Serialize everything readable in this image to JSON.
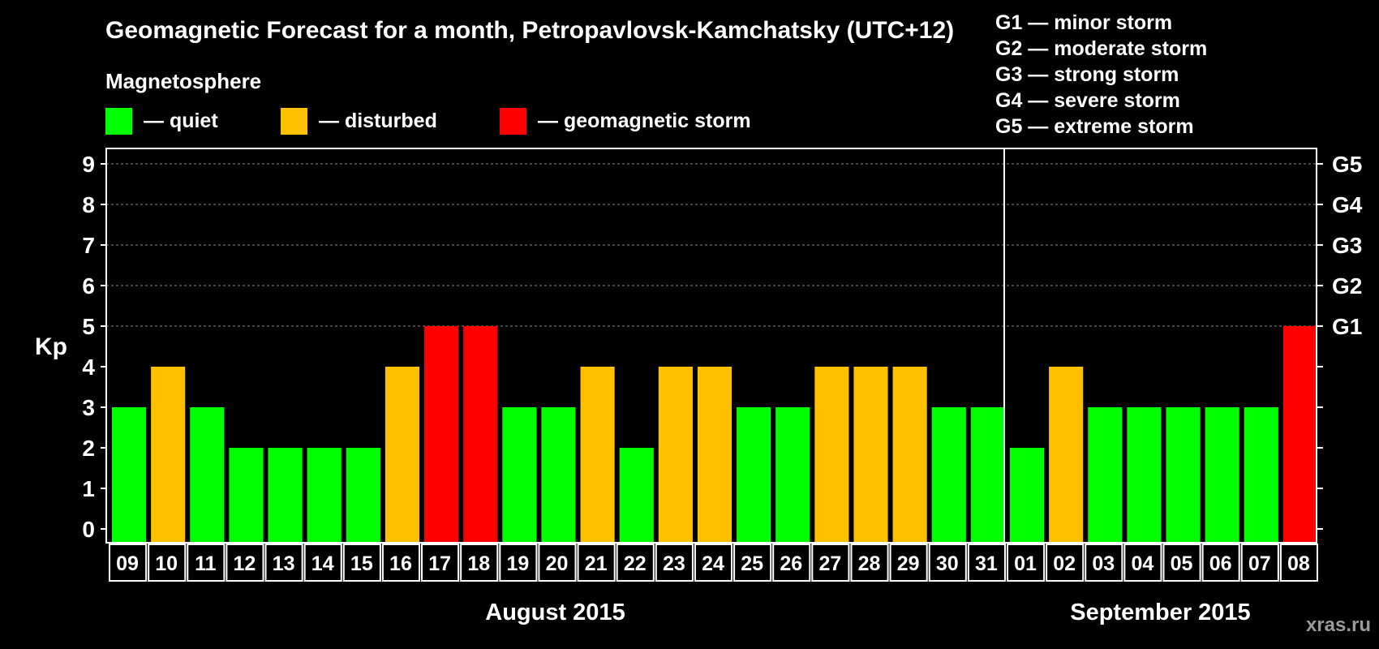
{
  "title": "Geomagnetic Forecast for a month, Petropavlovsk-Kamchatsky (UTC+12)",
  "legend": {
    "title": "Magnetosphere",
    "items": [
      {
        "label": "— quiet",
        "color": "#00ff00"
      },
      {
        "label": "— disturbed",
        "color": "#ffc000"
      },
      {
        "label": "— geomagnetic storm",
        "color": "#ff0000"
      }
    ]
  },
  "g_scale": [
    "G1 — minor storm",
    "G2 — moderate storm",
    "G3 — strong storm",
    "G4 — severe storm",
    "G5 — extreme storm"
  ],
  "watermark": "xras.ru",
  "colors": {
    "quiet": "#00ff00",
    "disturbed": "#ffc000",
    "storm": "#ff0000",
    "grid": "#888888",
    "axis": "#ffffff"
  },
  "chart_data": {
    "type": "bar",
    "ylabel": "Kp",
    "ylim": [
      0,
      9
    ],
    "yticks": [
      0,
      1,
      2,
      3,
      4,
      5,
      6,
      7,
      8,
      9
    ],
    "right_axis_labels": [
      {
        "kp": 5,
        "label": "G1"
      },
      {
        "kp": 6,
        "label": "G2"
      },
      {
        "kp": 7,
        "label": "G3"
      },
      {
        "kp": 8,
        "label": "G4"
      },
      {
        "kp": 9,
        "label": "G5"
      }
    ],
    "grid": "dashed horizontal",
    "categories": [
      "09",
      "10",
      "11",
      "12",
      "13",
      "14",
      "15",
      "16",
      "17",
      "18",
      "19",
      "20",
      "21",
      "22",
      "23",
      "24",
      "25",
      "26",
      "27",
      "28",
      "29",
      "30",
      "31",
      "01",
      "02",
      "03",
      "04",
      "05",
      "06",
      "07",
      "08"
    ],
    "values": [
      3,
      4,
      3,
      2,
      2,
      2,
      2,
      4,
      5,
      5,
      3,
      3,
      4,
      2,
      4,
      4,
      3,
      3,
      4,
      4,
      4,
      3,
      3,
      2,
      4,
      3,
      3,
      3,
      3,
      3,
      5
    ],
    "status": [
      "quiet",
      "disturbed",
      "quiet",
      "quiet",
      "quiet",
      "quiet",
      "quiet",
      "disturbed",
      "storm",
      "storm",
      "quiet",
      "quiet",
      "disturbed",
      "quiet",
      "disturbed",
      "disturbed",
      "quiet",
      "quiet",
      "disturbed",
      "disturbed",
      "disturbed",
      "quiet",
      "quiet",
      "quiet",
      "disturbed",
      "quiet",
      "quiet",
      "quiet",
      "quiet",
      "quiet",
      "storm"
    ],
    "months": [
      {
        "label": "August 2015",
        "first_index": 0,
        "last_index": 22
      },
      {
        "label": "September 2015",
        "first_index": 23,
        "last_index": 30
      }
    ]
  }
}
